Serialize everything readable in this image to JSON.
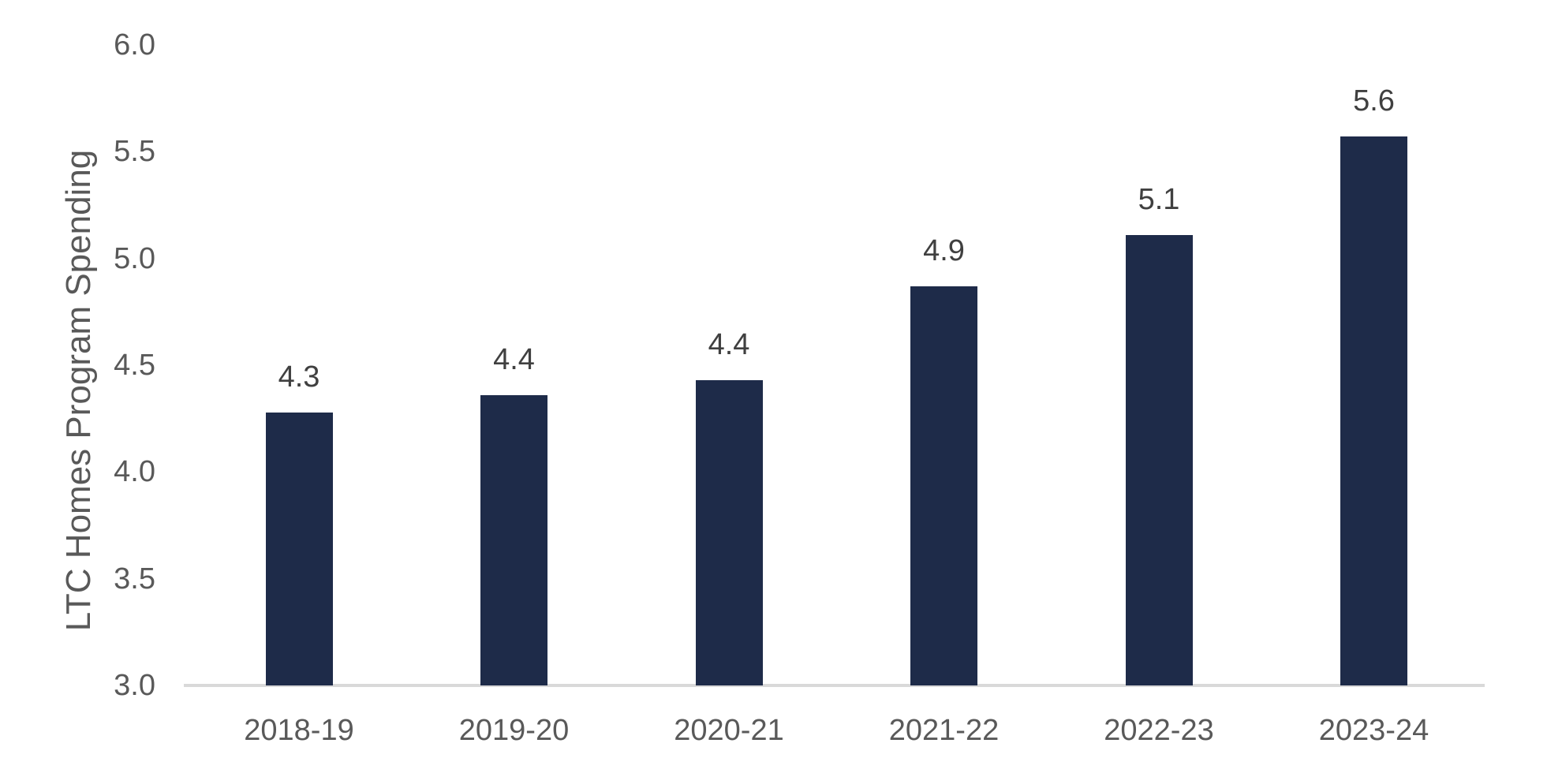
{
  "chart_data": {
    "type": "bar",
    "title": "",
    "xlabel": "",
    "ylabel": "LTC Homes Program Spending",
    "categories": [
      "2018-19",
      "2019-20",
      "2020-21",
      "2021-22",
      "2022-23",
      "2023-24"
    ],
    "values": [
      4.3,
      4.4,
      4.4,
      4.9,
      5.1,
      5.6
    ],
    "data_labels": [
      "4.3",
      "4.4",
      "4.4",
      "4.9",
      "5.1",
      "5.6"
    ],
    "bar_heights_precise": [
      4.28,
      4.36,
      4.43,
      4.87,
      5.11,
      5.57
    ],
    "ylim": [
      3.0,
      6.0
    ],
    "ytick_labels": [
      "3.0",
      "3.5",
      "4.0",
      "4.5",
      "5.0",
      "5.5",
      "6.0"
    ],
    "grid": false,
    "legend": "none",
    "colors": {
      "bar": "#1E2B49",
      "axis_line": "#D9D9D9",
      "axis_text": "#595959",
      "data_label_text": "#404040"
    }
  }
}
